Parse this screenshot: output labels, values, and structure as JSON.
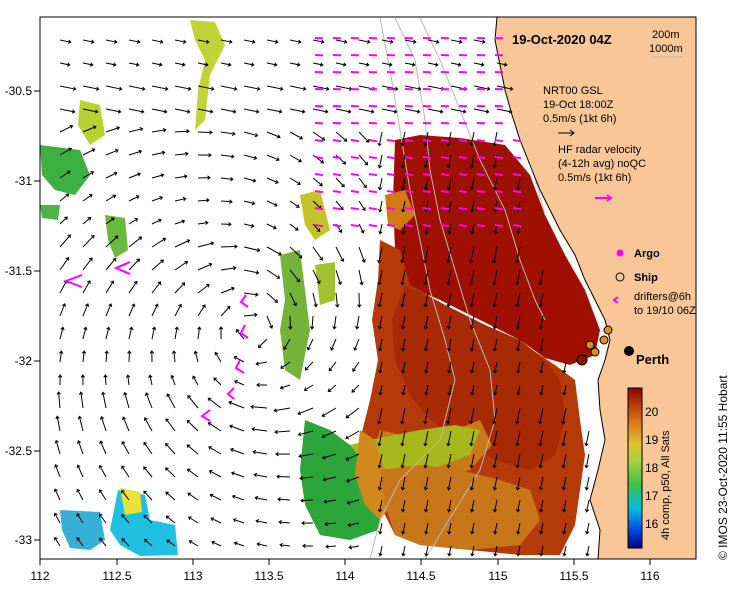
{
  "map": {
    "date_label": "19-Oct-2020 04Z",
    "depth_labels": [
      "200m",
      "1000m"
    ],
    "x_ticks": [
      "112",
      "112.5",
      "113",
      "113.5",
      "114",
      "114.5",
      "115",
      "115.5",
      "116"
    ],
    "y_ticks": [
      "-30.5",
      "-31",
      "-31.5",
      "-32",
      "-32.5",
      "-33"
    ],
    "legend": {
      "gsl_title": "NRT00 GSL",
      "gsl_time": "19-Oct 18:00Z",
      "gsl_scale": "0.5m/s (1kt 6h)",
      "hf_line1": "HF radar velocity",
      "hf_line2": "(4-12h avg) noQC",
      "hf_scale": "0.5m/s (1kt 6h)",
      "argo": "Argo",
      "ship": "Ship",
      "drifters_line1": "drifters@6h",
      "drifters_line2": "to 19/10 06Z"
    },
    "city": "Perth",
    "colorbar": {
      "ticks": [
        "20",
        "19",
        "18",
        "17",
        "16"
      ],
      "label": "4h comp, p50, All Sats"
    },
    "credit": "© IMOS 23-Oct-2020 11:55 Hobart",
    "colors": {
      "land": "#f9c697",
      "vector_black": "#000000",
      "vector_magenta": "#ff00ff",
      "sst_warm": "#a01000",
      "sst_mid": "#d2891c",
      "sst_cool": "#2ca53a"
    }
  }
}
